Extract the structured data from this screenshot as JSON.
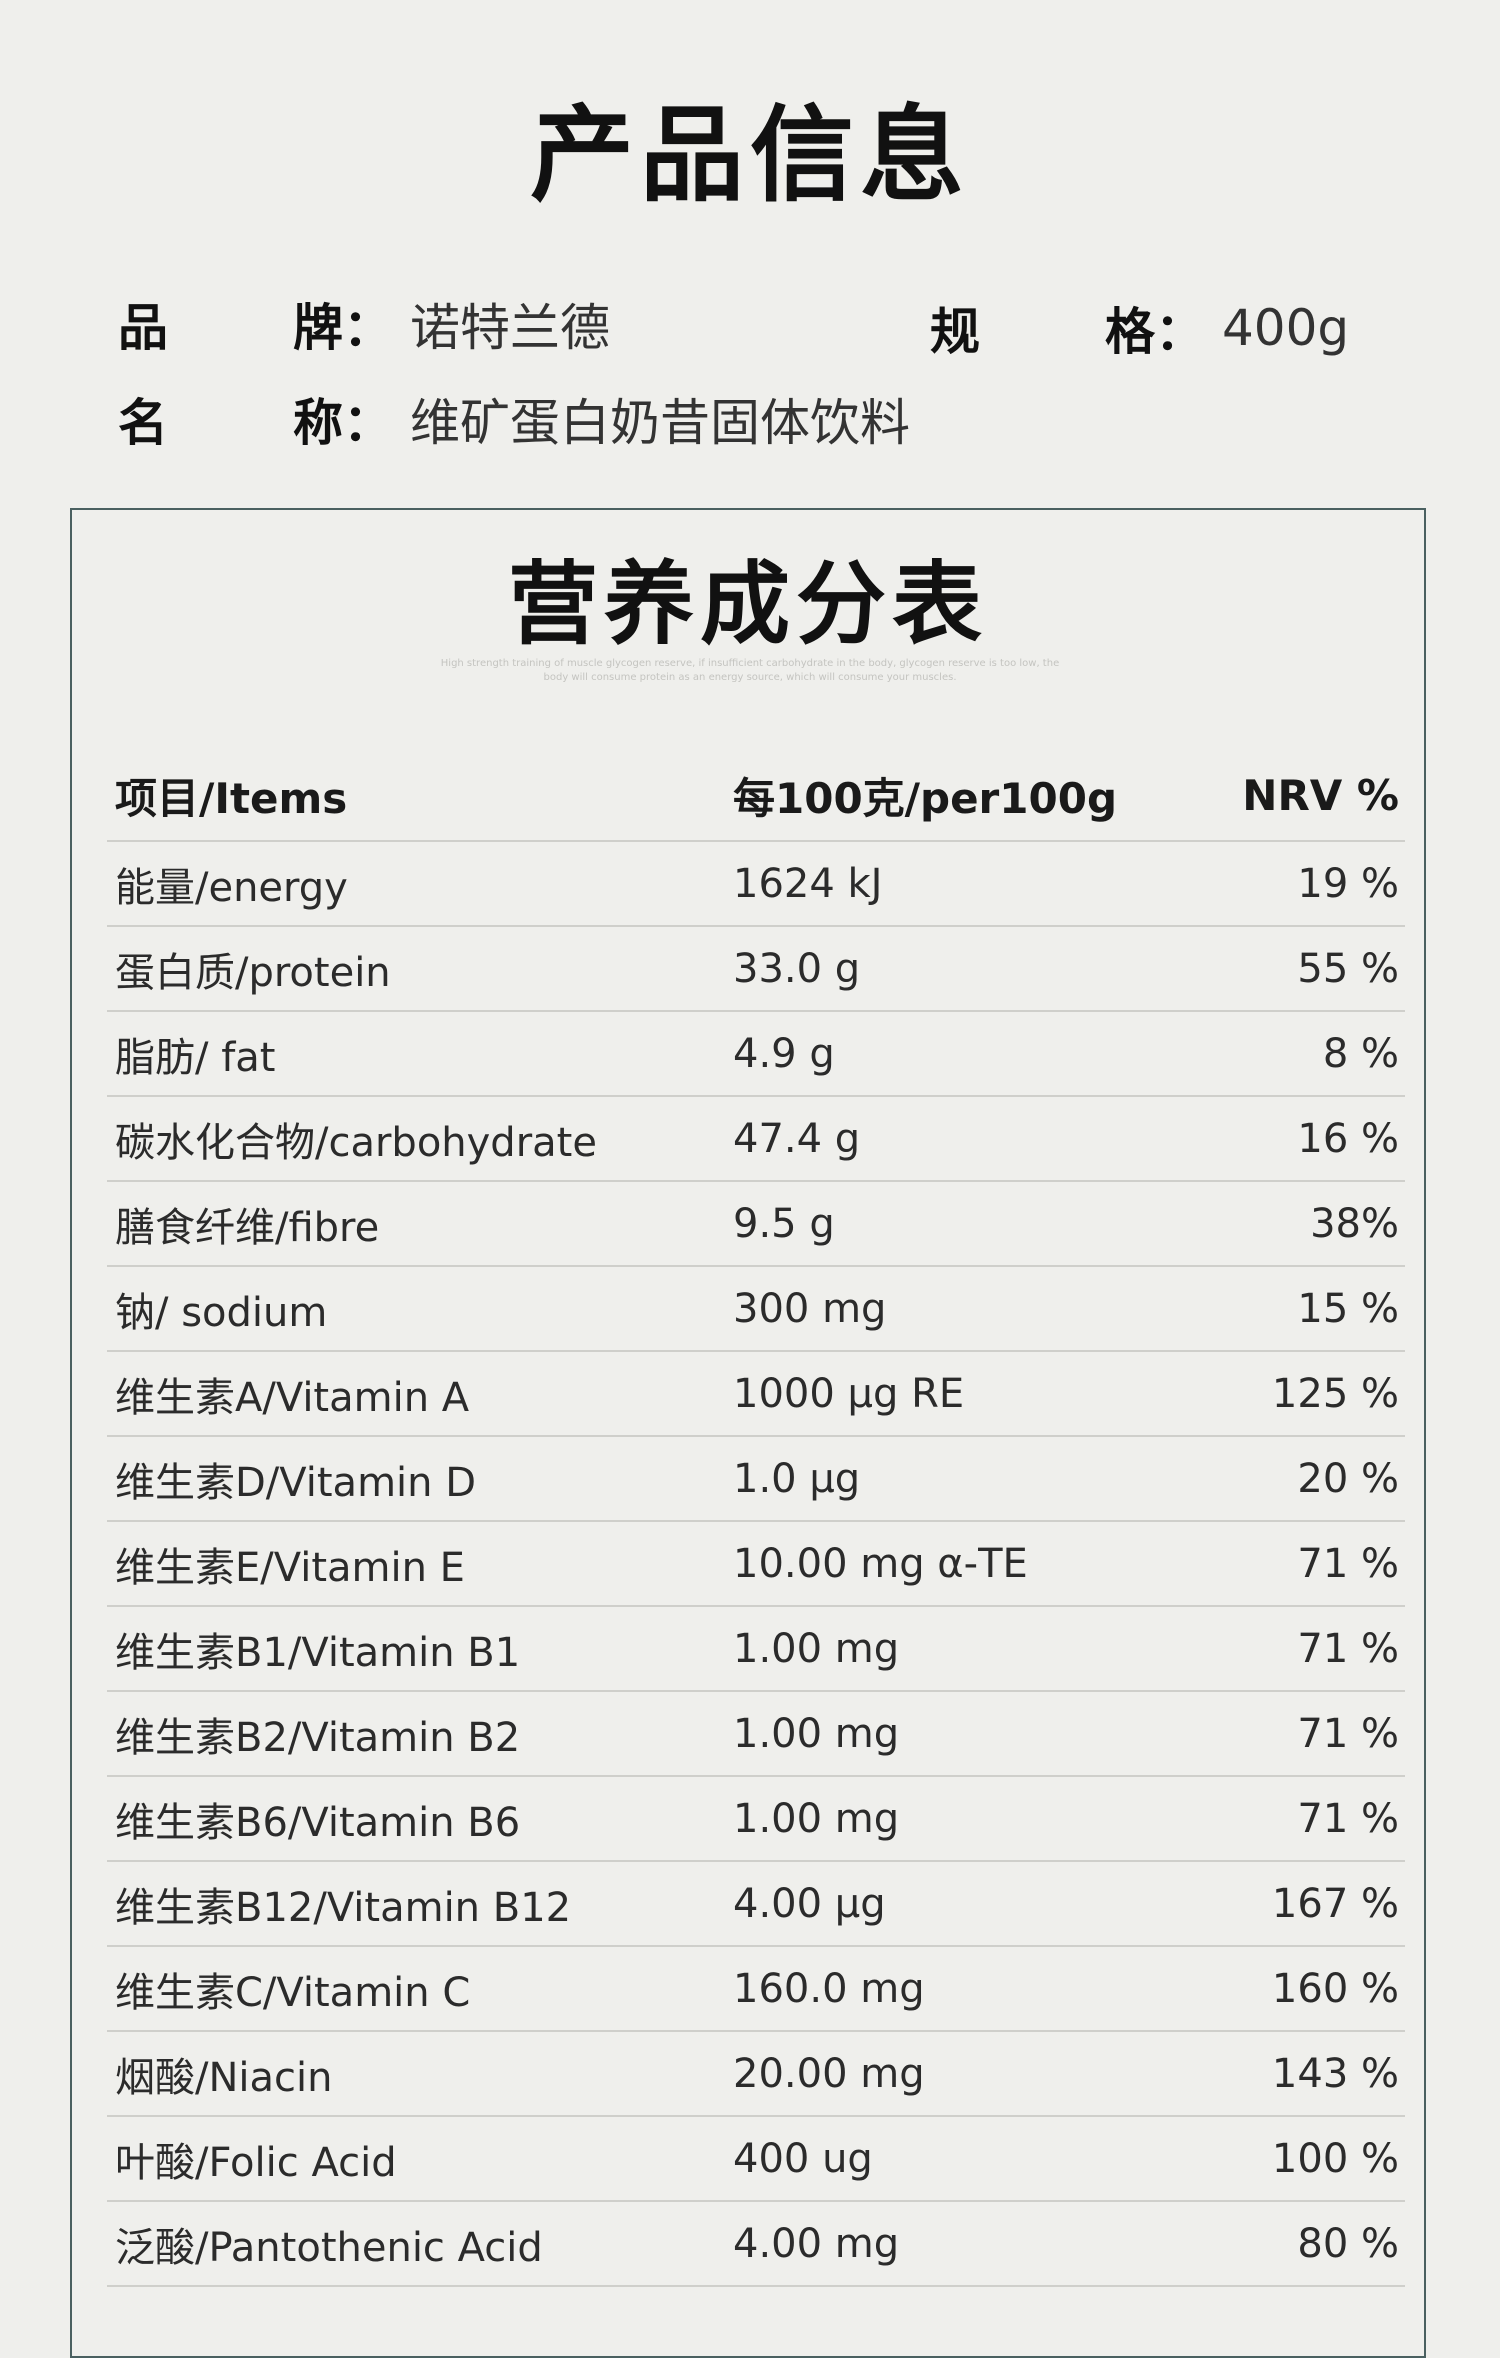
{
  "header": {
    "title": "产品信息"
  },
  "info": {
    "brand_label_a": "品",
    "brand_label_b": "牌：",
    "brand_value": "诺特兰德",
    "spec_label_a": "规",
    "spec_label_b": "格：",
    "spec_value": "400g",
    "name_label_a": "名",
    "name_label_b": "称：",
    "name_value": "维矿蛋白奶昔固体饮料"
  },
  "nutrition": {
    "title": "营养成分表",
    "subcaption_line1": "High strength training of muscle glycogen reserve, if insufficient carbohydrate in the body, glycogen reserve is too low, the",
    "subcaption_line2": "body will consume protein as an energy source, which will consume your muscles.",
    "headers": {
      "item": "项目/Items",
      "per100": "每100克/per100g",
      "nrv": "NRV %"
    },
    "rows": [
      {
        "item": "能量/energy",
        "per100": "1624 kJ",
        "nrv": "19 %"
      },
      {
        "item": "蛋白质/protein",
        "per100": "33.0 g",
        "nrv": "55 %"
      },
      {
        "item": "脂肪/ fat",
        "per100": "4.9 g",
        "nrv": "8 %"
      },
      {
        "item": "碳水化合物/carbohydrate",
        "per100": "47.4 g",
        "nrv": "16 %"
      },
      {
        "item": "膳食纤维/fibre",
        "per100": "9.5 g",
        "nrv": "38%"
      },
      {
        "item": "钠/ sodium",
        "per100": "300 mg",
        "nrv": "15 %"
      },
      {
        "item": "维生素A/Vitamin A",
        "per100": "1000 μg RE",
        "nrv": "125 %"
      },
      {
        "item": "维生素D/Vitamin D",
        "per100": "1.0 μg",
        "nrv": "20 %"
      },
      {
        "item": "维生素E/Vitamin E",
        "per100": "10.00 mg α-TE",
        "nrv": "71 %"
      },
      {
        "item": "维生素B1/Vitamin B1",
        "per100": "1.00 mg",
        "nrv": "71 %"
      },
      {
        "item": "维生素B2/Vitamin B2",
        "per100": "1.00 mg",
        "nrv": "71 %"
      },
      {
        "item": "维生素B6/Vitamin B6",
        "per100": "1.00 mg",
        "nrv": "71 %"
      },
      {
        "item": "维生素B12/Vitamin B12",
        "per100": "4.00 μg",
        "nrv": "167 %"
      },
      {
        "item": "维生素C/Vitamin C",
        "per100": "160.0 mg",
        "nrv": "160 %"
      },
      {
        "item": "烟酸/Niacin",
        "per100": "20.00 mg",
        "nrv": "143 %"
      },
      {
        "item": "叶酸/Folic Acid",
        "per100": "400 ug",
        "nrv": "100 %"
      },
      {
        "item": "泛酸/Pantothenic Acid",
        "per100": "4.00 mg",
        "nrv": "80 %"
      }
    ]
  }
}
